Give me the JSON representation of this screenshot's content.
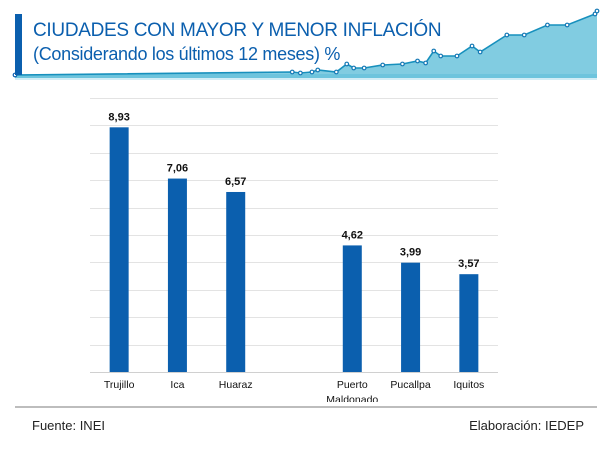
{
  "header": {
    "title": "CIUDADES CON MAYOR Y MENOR INFLACIÓN",
    "subtitle": "(Considerando los últimos 12 meses) %",
    "accent_color": "#0b5fae",
    "decor_color": "#1aa3c9"
  },
  "chart_data": {
    "type": "bar",
    "title": "CIUDADES CON MAYOR Y MENOR INFLACIÓN",
    "subtitle": "(Considerando los últimos 12 meses) %",
    "categories": [
      "Trujillo",
      "Ica",
      "Huaraz",
      "",
      "Puerto Maldonado",
      "Pucallpa",
      "Iquitos"
    ],
    "label_lines": [
      [
        "Trujillo"
      ],
      [
        "Ica"
      ],
      [
        "Huaraz"
      ],
      [],
      [
        "Puerto",
        "Maldonado"
      ],
      [
        "Pucallpa"
      ],
      [
        "Iquitos"
      ]
    ],
    "values": [
      8.93,
      7.06,
      6.57,
      null,
      4.62,
      3.99,
      3.57
    ],
    "data_labels": [
      "8,93",
      "7,06",
      "6,57",
      "",
      "4,62",
      "3,99",
      "3,57"
    ],
    "xlabel": "",
    "ylabel": "",
    "ylim": [
      0,
      10
    ],
    "y_gridline_step": 1,
    "grid": true,
    "y_tick_labels_visible": false,
    "legend": "none",
    "bar_color": "#0b5fae"
  },
  "footer": {
    "source": "Fuente: INEI",
    "credit": "Elaboración: IEDEP"
  }
}
